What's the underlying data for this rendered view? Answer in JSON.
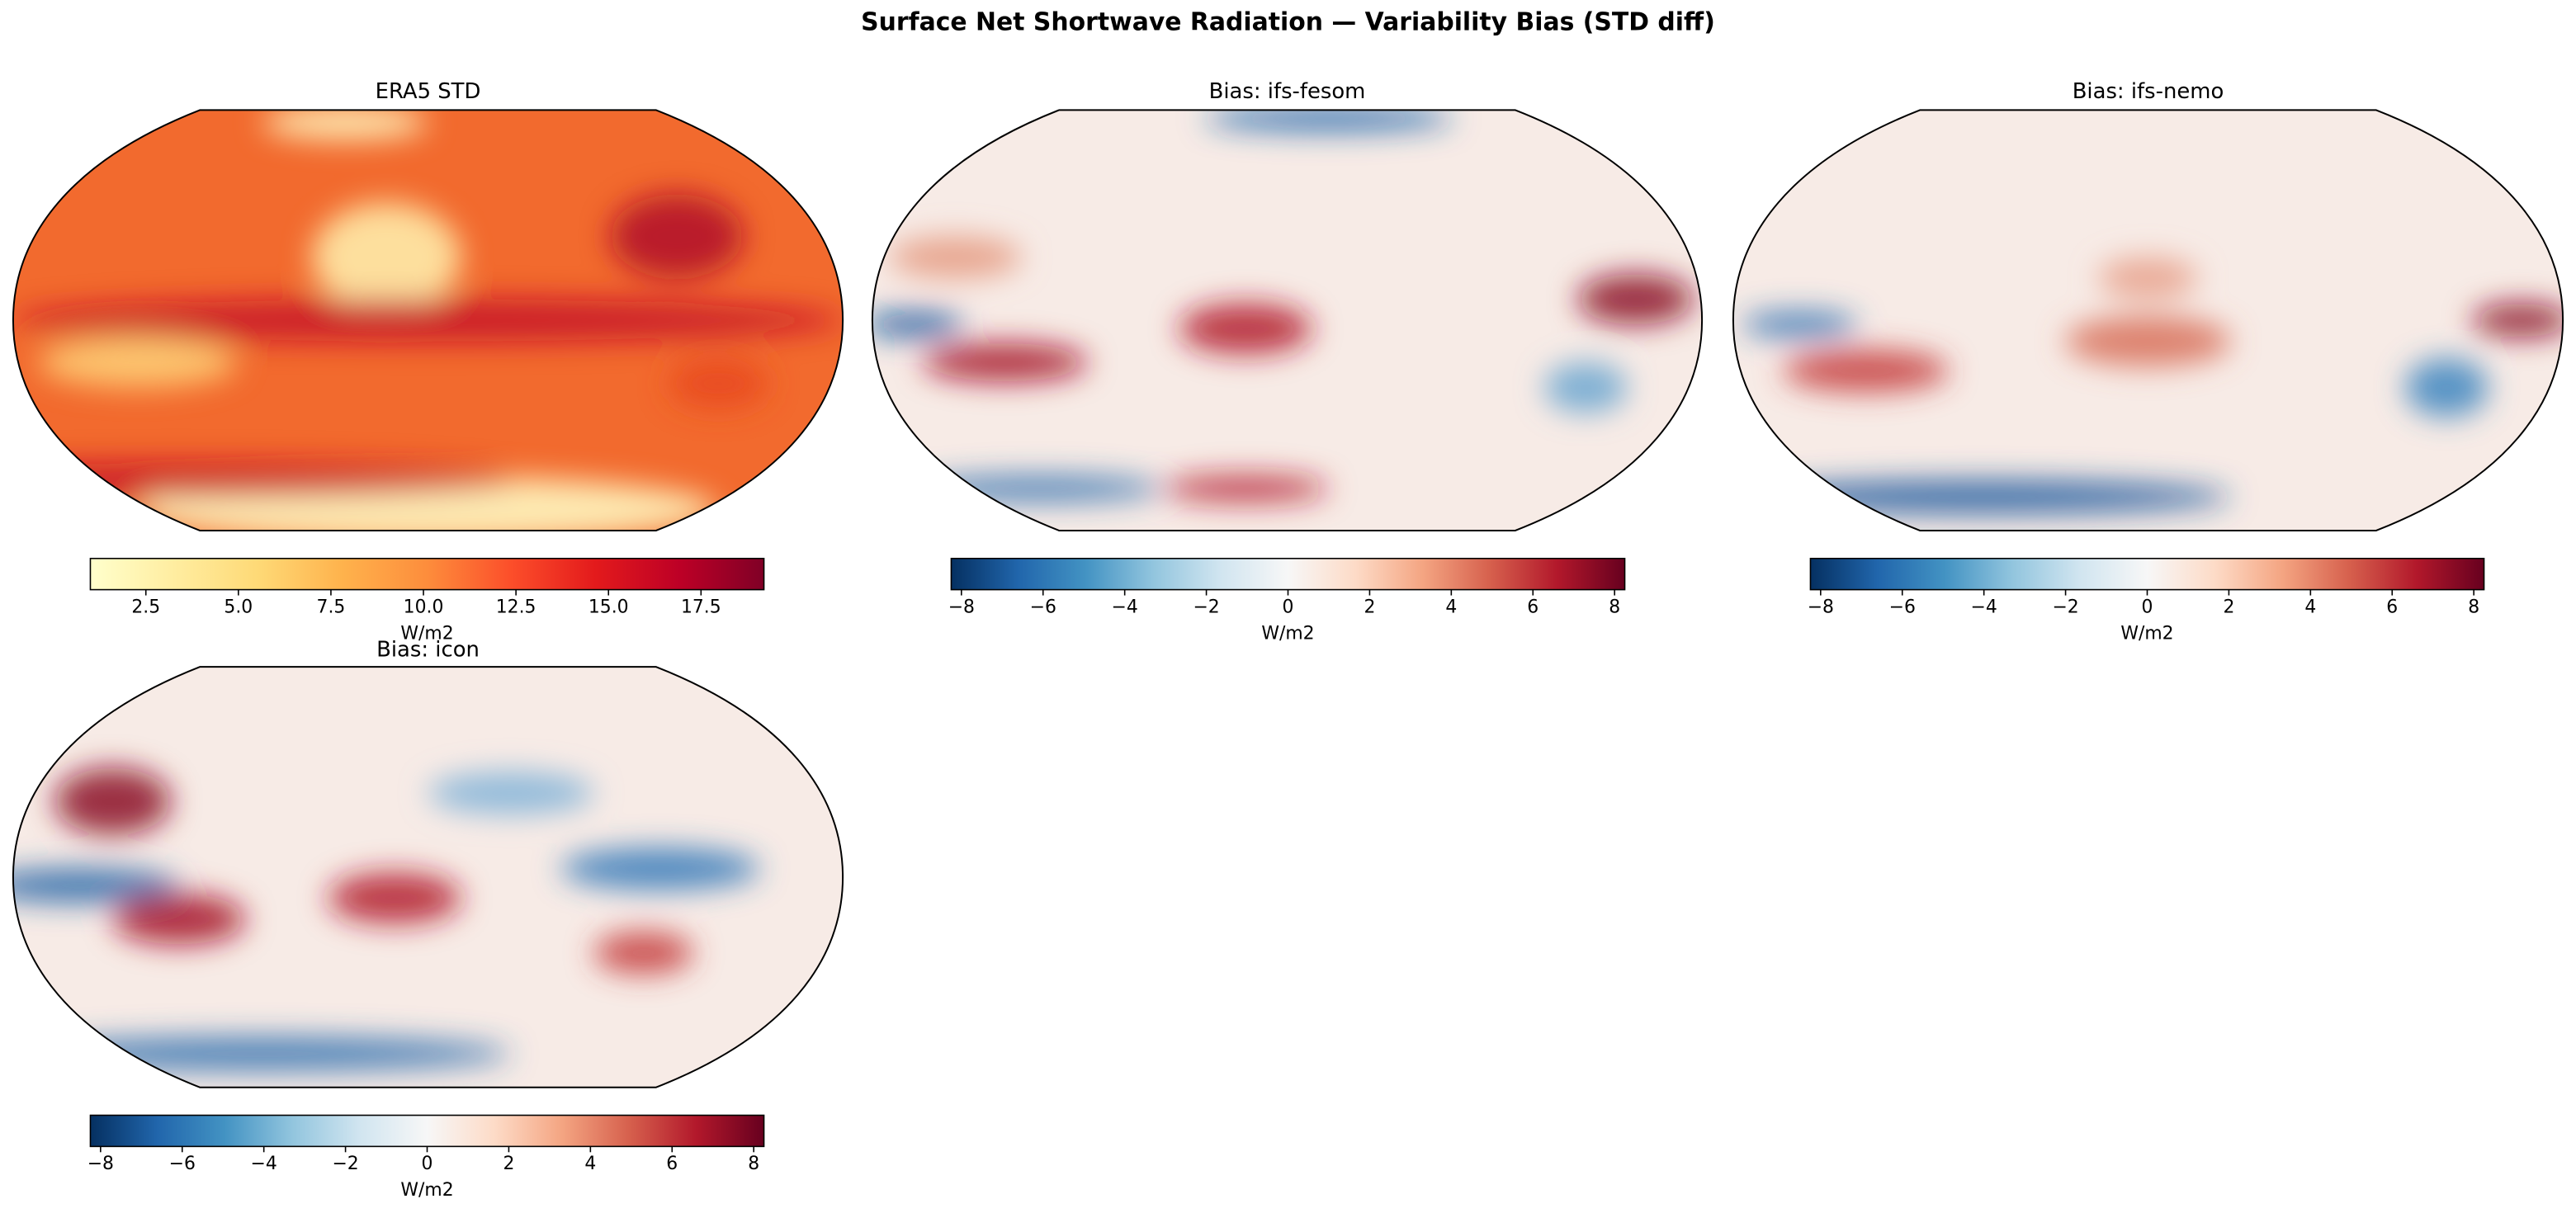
{
  "title": "Surface Net Shortwave Radiation — Variability Bias (STD diff)",
  "chart_data": [
    {
      "type": "map",
      "title": "ERA5 STD",
      "colormap": "YlOrRd",
      "colorbar": {
        "label": "W/m2",
        "lim": [
          1.0,
          19.2
        ],
        "ticks": [
          2.5,
          {
            "value": 5,
            "label": "5.0"
          },
          7.5,
          {
            "value": 10,
            "label": "10.0"
          },
          12.5,
          {
            "value": 15,
            "label": "15.0"
          },
          17.5
        ]
      }
    },
    {
      "type": "map",
      "title": "Bias: ifs-fesom",
      "colormap": "RdBu_r",
      "colorbar": {
        "label": "W/m2",
        "lim": [
          -8.25,
          8.25
        ],
        "ticks": [
          {
            "value": -8,
            "label": "−8"
          },
          {
            "value": -6,
            "label": "−6"
          },
          {
            "value": -4,
            "label": "−4"
          },
          {
            "value": -2,
            "label": "−2"
          },
          0,
          2,
          4,
          6,
          8
        ]
      }
    },
    {
      "type": "map",
      "title": "Bias: ifs-nemo",
      "colormap": "RdBu_r",
      "colorbar": {
        "label": "W/m2",
        "lim": [
          -8.25,
          8.25
        ],
        "ticks": [
          {
            "value": -8,
            "label": "−8"
          },
          {
            "value": -6,
            "label": "−6"
          },
          {
            "value": -4,
            "label": "−4"
          },
          {
            "value": -2,
            "label": "−2"
          },
          0,
          2,
          4,
          6,
          8
        ]
      }
    },
    {
      "type": "map",
      "title": "Bias: icon",
      "colormap": "RdBu_r",
      "colorbar": {
        "label": "W/m2",
        "lim": [
          -8.25,
          8.25
        ],
        "ticks": [
          {
            "value": -8,
            "label": "−8"
          },
          {
            "value": -6,
            "label": "−6"
          },
          {
            "value": -4,
            "label": "−4"
          },
          {
            "value": -2,
            "label": "−2"
          },
          0,
          2,
          4,
          6,
          8
        ]
      }
    }
  ]
}
